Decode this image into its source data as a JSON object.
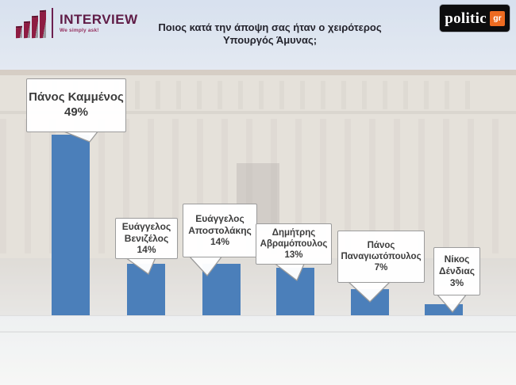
{
  "header": {
    "interview_logo": {
      "name": "INTERVIEW",
      "tagline": "We simply ask!"
    },
    "politic_logo": {
      "name": "politic",
      "suffix": "gr"
    },
    "title_line1": "Ποιος κατά την άποψη σας ήταν ο χειρότερος",
    "title_line2": "Υπουργός Άμυνας;"
  },
  "chart_data": {
    "type": "bar",
    "title": "Ποιος κατά την άποψη σας ήταν ο χειρότερος Υπουργός Άμυνας;",
    "categories": [
      "Πάνος Καμμένος",
      "Ευάγγελος Βενιζέλος",
      "Ευάγγελος Αποστολάκης",
      "Δημήτρης Αβραμόπουλος",
      "Πάνος Παναγιωτόπουλος",
      "Νίκος Δένδιας"
    ],
    "values": [
      49,
      14,
      14,
      13,
      7,
      3
    ],
    "unit": "%",
    "ylim": [
      0,
      52
    ],
    "grid": false,
    "legend": "none",
    "bar_color": "#4b7fba",
    "callout_lines": [
      [
        "Πάνος Καμμένος",
        "49%"
      ],
      [
        "Ευάγγελος",
        "Βενιζέλος",
        "14%"
      ],
      [
        "Ευάγγελος",
        "Αποστολάκης",
        "14%"
      ],
      [
        "Δημήτρης",
        "Αβραμόπουλος",
        "13%"
      ],
      [
        "Πάνος",
        "Παναγιωτόπουλος",
        "7%"
      ],
      [
        "Νίκος",
        "Δένδιας",
        "3%"
      ]
    ]
  }
}
